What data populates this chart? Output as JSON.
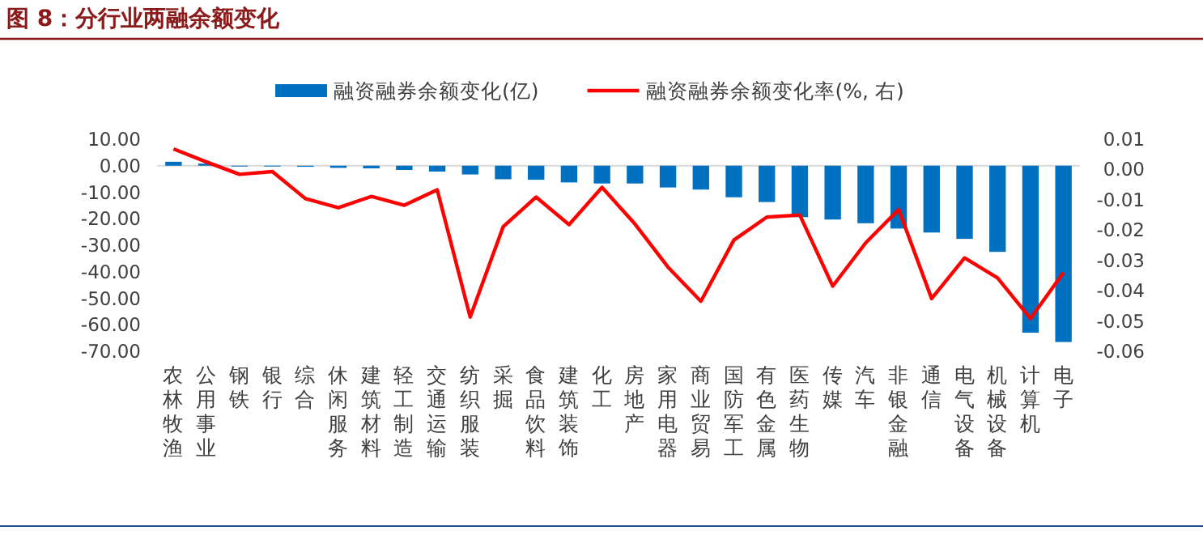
{
  "chart_data": {
    "type": "bar",
    "title": "图 8：分行业两融余额变化",
    "categories": [
      "农林牧渔",
      "公用事业",
      "钢铁",
      "银行",
      "综合",
      "休闲服务",
      "建筑材料",
      "轻工制造",
      "交通运输",
      "纺织服装",
      "采掘",
      "食品饮料",
      "建筑装饰",
      "化工",
      "房地产",
      "家用电器",
      "商业贸易",
      "国防军工",
      "有色金属",
      "医药生物",
      "传媒",
      "汽车",
      "非银金融",
      "通信",
      "电气设备",
      "机械设备",
      "计算机",
      "电子"
    ],
    "series": [
      {
        "name": "融资融券余额变化(亿)",
        "color": "#0070c0",
        "values": [
          1.5,
          0.8,
          -0.3,
          -0.3,
          -0.4,
          -0.8,
          -1.0,
          -1.6,
          -2.2,
          -3.3,
          -5.1,
          -5.3,
          -6.3,
          -6.7,
          -6.7,
          -8.2,
          -9.0,
          -11.9,
          -13.7,
          -19.4,
          -20.3,
          -21.7,
          -23.7,
          -25.2,
          -27.6,
          -32.5,
          -63.0,
          -66.5
        ]
      },
      {
        "name": "融资融券余额变化率(%, 右)",
        "type": "line",
        "axis": "y2",
        "color": "#ff0000",
        "values": [
          0.0068,
          0.0025,
          -0.0016,
          -0.0007,
          -0.0096,
          -0.0126,
          -0.0089,
          -0.0118,
          -0.0067,
          -0.0487,
          -0.0189,
          -0.0091,
          -0.0182,
          -0.0059,
          -0.018,
          -0.0322,
          -0.0435,
          -0.0233,
          -0.0157,
          -0.015,
          -0.0385,
          -0.0242,
          -0.0132,
          -0.0426,
          -0.0292,
          -0.0358,
          -0.0492,
          -0.034
        ]
      }
    ],
    "ylim": [
      -70,
      10
    ],
    "yticks": [
      {
        "value": 10,
        "label": "10.00"
      },
      {
        "value": 0,
        "label": "0.00"
      },
      {
        "value": -10,
        "label": "-10.00"
      },
      {
        "value": -20,
        "label": "-20.00"
      },
      {
        "value": -30,
        "label": "-30.00"
      },
      {
        "value": -40,
        "label": "-40.00"
      },
      {
        "value": -50,
        "label": "-50.00"
      },
      {
        "value": -60,
        "label": "-60.00"
      },
      {
        "value": -70,
        "label": "-70.00"
      }
    ],
    "y2lim": [
      -0.06,
      0.01
    ],
    "y2ticks": [
      {
        "value": 0.01,
        "label": "0.01"
      },
      {
        "value": 0,
        "label": "0.00"
      },
      {
        "value": -0.01,
        "label": "-0.01"
      },
      {
        "value": -0.02,
        "label": "-0.02"
      },
      {
        "value": -0.03,
        "label": "-0.03"
      },
      {
        "value": -0.04,
        "label": "-0.04"
      },
      {
        "value": -0.05,
        "label": "-0.05"
      },
      {
        "value": -0.06,
        "label": "-0.06"
      }
    ],
    "legend": "top"
  }
}
